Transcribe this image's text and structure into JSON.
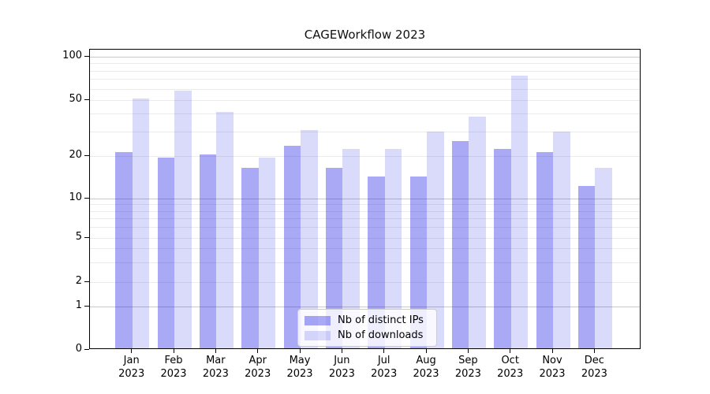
{
  "title": "CAGEWorkflow 2023",
  "axes": {
    "x_months": [
      "Jan",
      "Feb",
      "Mar",
      "Apr",
      "May",
      "Jun",
      "Jul",
      "Aug",
      "Sep",
      "Oct",
      "Nov",
      "Dec"
    ],
    "x_year": "2023",
    "y_tick_labels": [
      "0",
      "1",
      "2",
      "5",
      "10",
      "20",
      "50",
      "100"
    ]
  },
  "legend": {
    "items": [
      "Nb of distinct IPs",
      "Nb of downloads"
    ]
  },
  "colors": {
    "bar_ips_hex": "#a9a9f0",
    "bar_downloads_hex": "#d9d9f7",
    "bar_ips_rgba": "rgba(10,10,230,0.35)",
    "bar_downloads_rgba": "rgba(10,10,230,0.15)",
    "grid_major": "#c9c9c9",
    "grid_minor": "#ebebeb",
    "axis_line": "#000000"
  },
  "chart_data": {
    "type": "bar",
    "title": "CAGEWorkflow 2023",
    "categories": [
      "Jan 2023",
      "Feb 2023",
      "Mar 2023",
      "Apr 2023",
      "May 2023",
      "Jun 2023",
      "Jul 2023",
      "Aug 2023",
      "Sep 2023",
      "Oct 2023",
      "Nov 2023",
      "Dec 2023"
    ],
    "series": [
      {
        "name": "Nb of distinct IPs",
        "values": [
          21,
          19,
          20,
          16,
          23,
          16,
          14,
          14,
          25,
          22,
          21,
          12
        ]
      },
      {
        "name": "Nb of downloads",
        "values": [
          50,
          57,
          40,
          19,
          30,
          22,
          22,
          29,
          37,
          72,
          29,
          16
        ]
      }
    ],
    "xlabel": "",
    "ylabel": "",
    "yscale": "symlog",
    "yticks": [
      0,
      1,
      2,
      5,
      10,
      20,
      50,
      100
    ],
    "ylim": [
      0,
      111
    ],
    "grid": true,
    "legend_position": "lower center"
  }
}
